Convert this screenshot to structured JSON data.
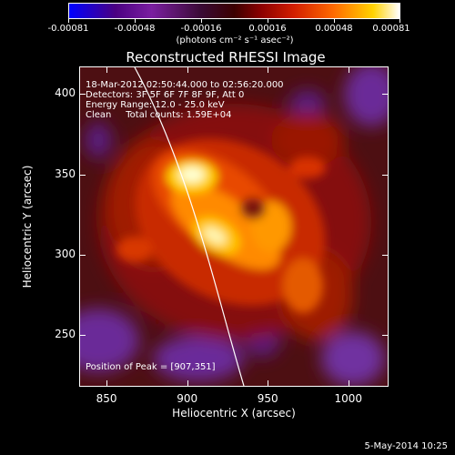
{
  "colorbar": {
    "tick_labels": [
      "-0.00081",
      "-0.00048",
      "-0.00016",
      "0.00016",
      "0.00048",
      "0.00081"
    ],
    "unit_label": "(photons cm⁻² s⁻¹ asec⁻²)",
    "colors": [
      "#0000ff",
      "#7a1fa0",
      "#3c0000",
      "#d21e00",
      "#ffd200",
      "#ffffff"
    ]
  },
  "title": "Reconstructed RHESSI Image",
  "info": {
    "time_range": "18-Mar-2012 02:50:44.000 to 02:56:20.000",
    "detectors": "Detectors: 3F 5F 6F 7F 8F 9F, Att 0",
    "energy": "Energy Range: 12.0 - 25.0 keV",
    "clean": "Clean     Total counts: 1.59E+04",
    "peak": "Position of Peak = [907,351]"
  },
  "x_axis": {
    "title": "Heliocentric X (arcsec)",
    "range": [
      833,
      1025
    ],
    "ticks": [
      850,
      900,
      950,
      1000
    ],
    "tick_labels": [
      "850",
      "900",
      "950",
      "1000"
    ]
  },
  "y_axis": {
    "title": "Heliocentric Y (arcsec)",
    "range": [
      218,
      417
    ],
    "ticks": [
      250,
      300,
      350,
      400
    ],
    "tick_labels": [
      "250",
      "300",
      "350",
      "400"
    ]
  },
  "footer_date": "5-May-2014 10:25"
}
